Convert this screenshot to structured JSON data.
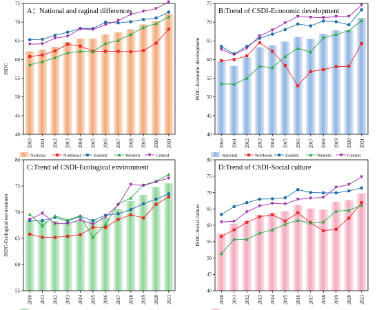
{
  "colors": {
    "Northeast": "#e8262b",
    "Eastern": "#1f6fa8",
    "Western": "#27a843",
    "Central": "#9b2aa6"
  },
  "marker_icons": {
    "Northeast": "square-marker-icon",
    "Eastern": "circle-marker-icon",
    "Western": "triangle-marker-icon",
    "Central": "inverted-triangle-marker-icon"
  },
  "chart_data": [
    {
      "type": "bar+line",
      "title": "A：National and raginal differences",
      "ylabel": "ISDC",
      "xlabel": "",
      "ylim": [
        40,
        75
      ],
      "yticks": [
        40,
        45,
        50,
        55,
        60,
        65,
        70,
        75
      ],
      "categories": [
        "2010",
        "2011",
        "2012",
        "2013",
        "2014",
        "2015",
        "2016",
        "2017",
        "2018",
        "2019",
        "2020",
        "2021"
      ],
      "bar_series": {
        "name": "National",
        "color": "#f0a878",
        "light": "#fde4d2",
        "values": [
          62.2,
          62.6,
          63.4,
          64.7,
          65.6,
          65.6,
          66.7,
          67.3,
          68.1,
          69.4,
          70.3,
          72.2
        ]
      },
      "series": [
        {
          "name": "Northeast",
          "values": [
            60.8,
            61.2,
            62.3,
            64.1,
            63.6,
            62.2,
            62.2,
            62.2,
            62.1,
            62.4,
            64.4,
            68.1
          ]
        },
        {
          "name": "Eastern",
          "values": [
            65.3,
            65.4,
            66.5,
            67.3,
            68.3,
            68.3,
            70.0,
            69.8,
            70.1,
            70.7,
            71.1,
            72.7
          ]
        },
        {
          "name": "Western",
          "values": [
            58.6,
            59.4,
            60.5,
            61.8,
            62.2,
            62.1,
            64.3,
            65.1,
            66.7,
            68.6,
            69.6,
            71.4
          ]
        },
        {
          "name": "Central",
          "values": [
            64.1,
            64.2,
            65.7,
            66.2,
            68.2,
            68.0,
            69.3,
            70.4,
            72.1,
            72.9,
            73.6,
            75.4
          ]
        }
      ],
      "legend_labels": [
        "National",
        "Northeast",
        "Eastern",
        "Western",
        "Central"
      ],
      "legend": "bottom"
    },
    {
      "type": "bar+line",
      "title": "B:Trend of CSDI-Economic development",
      "ylabel": "ISDC-Economic development",
      "xlabel": "",
      "ylim": [
        40,
        75
      ],
      "yticks": [
        40,
        45,
        50,
        55,
        60,
        65,
        70,
        75
      ],
      "categories": [
        "2010",
        "2011",
        "2012",
        "2013",
        "2014",
        "2015",
        "2016",
        "2017",
        "2018",
        "2019",
        "2020",
        "2021"
      ],
      "bar_series": {
        "name": "National",
        "color": "#8fb4e0",
        "light": "#dbe7f6",
        "values": [
          59.5,
          58.3,
          60.6,
          63.3,
          63.8,
          64.8,
          66.0,
          65.5,
          66.9,
          67.8,
          68.0,
          71.1
        ]
      },
      "series": [
        {
          "name": "Northeast",
          "values": [
            59.7,
            60.0,
            61.0,
            64.5,
            62.2,
            58.4,
            53.0,
            56.8,
            57.3,
            58.1,
            58.2,
            64.3
          ]
        },
        {
          "name": "Eastern",
          "values": [
            63.5,
            61.5,
            63.5,
            65.7,
            66.8,
            68.0,
            69.5,
            69.0,
            70.3,
            70.1,
            69.3,
            73.3
          ]
        },
        {
          "name": "Western",
          "values": [
            53.5,
            53.4,
            55.0,
            58.2,
            57.8,
            60.8,
            63.0,
            62.0,
            65.8,
            66.7,
            67.7,
            70.4
          ]
        },
        {
          "name": "Central",
          "values": [
            62.7,
            61.3,
            63.0,
            66.3,
            67.9,
            69.8,
            71.5,
            71.3,
            71.2,
            71.5,
            71.5,
            74.6
          ]
        }
      ],
      "legend_labels": [
        "National",
        "Northeast",
        "Eastern",
        "Western",
        "Central"
      ],
      "legend": "bottom"
    },
    {
      "type": "bar+line",
      "title": "C:Trend of CSDI-Ecological environment",
      "ylabel": "ISDC-Ecological environment",
      "xlabel": "",
      "ylim": [
        55,
        80
      ],
      "yticks": [
        55,
        60,
        65,
        70,
        75,
        80
      ],
      "categories": [
        "2010",
        "2011",
        "2012",
        "2013",
        "2014",
        "2015",
        "2016",
        "2017",
        "2018",
        "2019",
        "2020",
        "2021"
      ],
      "bar_series": {
        "name": "National",
        "color": "#8ed49a",
        "light": "#dcf2df",
        "values": [
          68.5,
          68.3,
          68.3,
          68.1,
          68.3,
          68.5,
          69.0,
          70.6,
          72.1,
          73.3,
          74.8,
          75.5
        ]
      },
      "series": [
        {
          "name": "Northeast",
          "values": [
            65.8,
            65.2,
            65.2,
            65.4,
            65.7,
            67.1,
            67.1,
            68.6,
            69.5,
            68.9,
            71.5,
            72.9
          ]
        },
        {
          "name": "Eastern",
          "values": [
            68.4,
            68.4,
            69.0,
            68.3,
            69.2,
            68.4,
            69.4,
            69.7,
            70.5,
            71.6,
            72.5,
            73.5
          ]
        },
        {
          "name": "Western",
          "values": [
            69.6,
            67.4,
            69.3,
            68.5,
            69.3,
            65.2,
            67.7,
            71.6,
            72.7,
            75.2,
            75.9,
            77.2
          ]
        },
        {
          "name": "Central",
          "values": [
            68.6,
            69.8,
            67.8,
            67.8,
            68.5,
            67.7,
            69.1,
            71.4,
            75.3,
            75.1,
            75.8,
            76.5
          ]
        }
      ],
      "legend_labels": [
        "National",
        "Northeast",
        "Eastern",
        "Western",
        "Central"
      ],
      "legend": "bottom"
    },
    {
      "type": "bar+line",
      "title": "D:Trend of CSDI-Social culture",
      "ylabel": "ISDC-Social culture",
      "xlabel": "",
      "ylim": [
        40,
        80
      ],
      "yticks": [
        40,
        45,
        50,
        55,
        60,
        65,
        70,
        75,
        80
      ],
      "categories": [
        "2010",
        "2011",
        "2012",
        "2013",
        "2014",
        "2015",
        "2016",
        "2017",
        "2018",
        "2019",
        "2020",
        "2021"
      ],
      "bar_series": {
        "name": "National",
        "color": "#f2a9bb",
        "light": "#fbe2e9",
        "values": [
          57.5,
          60.5,
          61.2,
          63.2,
          63.8,
          64.3,
          66.2,
          65.1,
          64.8,
          67.2,
          67.7,
          69.8
        ]
      },
      "series": [
        {
          "name": "Northeast",
          "values": [
            56.6,
            58.6,
            60.9,
            62.6,
            63.2,
            61.3,
            63.8,
            60.8,
            58.3,
            58.8,
            62.2,
            66.9
          ]
        },
        {
          "name": "Eastern",
          "values": [
            63.3,
            65.7,
            66.9,
            68.0,
            68.1,
            68.4,
            70.9,
            70.0,
            69.9,
            69.9,
            70.5,
            71.4
          ]
        },
        {
          "name": "Western",
          "values": [
            51.3,
            55.7,
            55.7,
            57.6,
            58.6,
            60.3,
            61.5,
            60.7,
            61.0,
            64.3,
            64.6,
            66.1
          ]
        },
        {
          "name": "Central",
          "values": [
            61.0,
            61.2,
            64.1,
            65.9,
            66.7,
            66.5,
            67.9,
            68.3,
            68.5,
            71.6,
            72.4,
            74.8
          ]
        }
      ],
      "legend_labels": [
        "National",
        "Northeast",
        "Eastern",
        "Western",
        "Central"
      ],
      "legend": "bottom"
    }
  ]
}
